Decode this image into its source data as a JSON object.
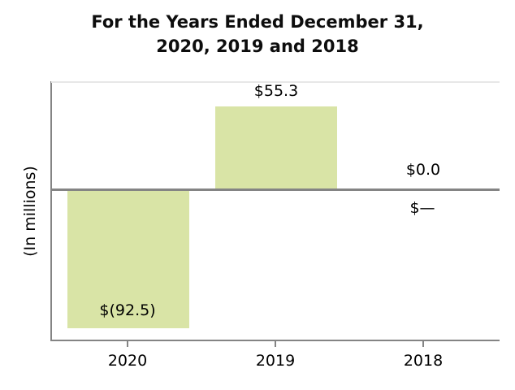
{
  "title": {
    "line1": "For the Years Ended December 31,",
    "line2": "2020, 2019 and 2018"
  },
  "y_axis_label": "(In millions)",
  "colors": {
    "bar_fill": "#d9e4a6",
    "axis_gray": "#848484",
    "spine_light": "#e7e7e7",
    "text": "#000000"
  },
  "chart_data": {
    "type": "bar",
    "title": "For the Years Ended December 31, 2020, 2019 and 2018",
    "xlabel": "",
    "ylabel": "(In millions)",
    "categories": [
      "2020",
      "2019",
      "2018"
    ],
    "values": [
      -92.5,
      55.3,
      0.0
    ],
    "data_labels": [
      "$(92.5)",
      "$55.3",
      "$0.0"
    ],
    "zero_value_below_axis_label": "$—",
    "bar_color": "#d9e4a6",
    "ylim": [
      -100,
      72
    ],
    "grid": false,
    "legend": false,
    "baseline": 0
  }
}
